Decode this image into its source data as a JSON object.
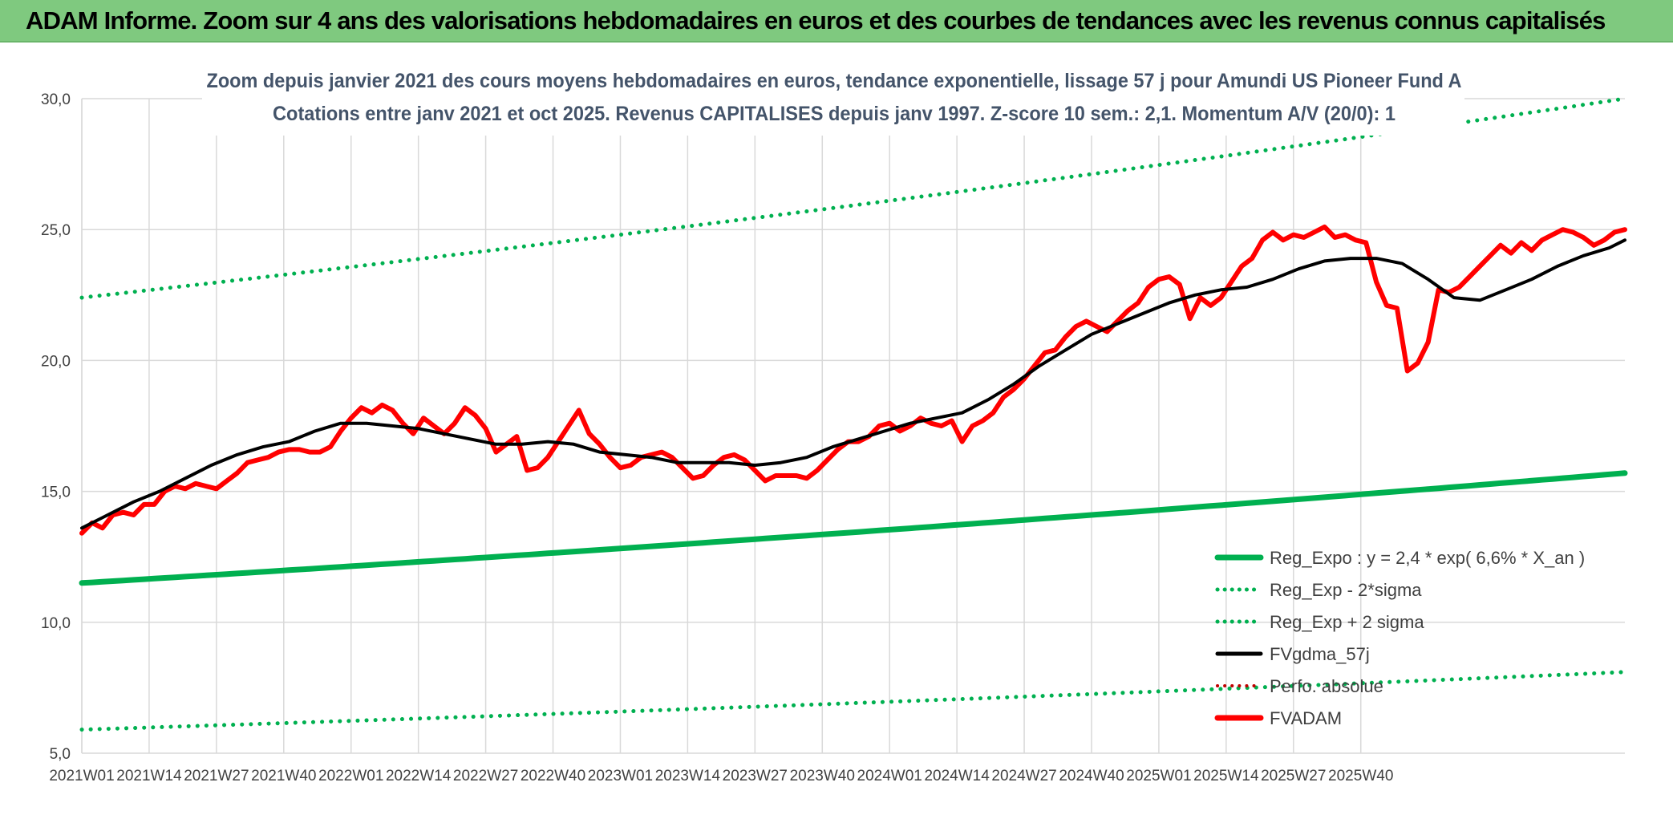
{
  "header": {
    "title": "ADAM Informe. Zoom sur 4 ans des valorisations hebdomadaires en euros et des courbes de tendances avec les revenus connus capitalisés"
  },
  "colors": {
    "banner": "#7fc97f",
    "reg_expo": "#00b050",
    "sigma": "#00b050",
    "fvgdma": "#000000",
    "perfo": "#c00000",
    "fvadam": "#ff0000",
    "grid": "#d9d9d9"
  },
  "chart_data": {
    "type": "line",
    "title_line1": "Zoom depuis janvier 2021 des cours moyens hebdomadaires en euros, tendance exponentielle, lissage 57 j pour Amundi US Pioneer Fund A",
    "title_line2": "Cotations entre janv 2021 et oct 2025. Revenus CAPITALISES depuis janv 1997. Z-score 10 sem.: 2,1. Momentum A/V (20/0): 1",
    "ylim": [
      5,
      30
    ],
    "y_ticks": [
      "5,0",
      "10,0",
      "15,0",
      "20,0",
      "25,0",
      "30,0"
    ],
    "grid": true,
    "legend_position": "bottom-right",
    "x_tick_labels": [
      "2021W01",
      "2021W14",
      "2021W27",
      "2021W40",
      "2022W01",
      "2022W14",
      "2022W27",
      "2022W40",
      "2023W01",
      "2023W14",
      "2023W27",
      "2023W40",
      "2024W01",
      "2024W14",
      "2024W27",
      "2024W40",
      "2025W01",
      "2025W14",
      "2025W27",
      "2025W40"
    ],
    "series": [
      {
        "name": "Reg_Expo : y = 2,4 * exp( 6,6% *  X_an )",
        "style": "solid-thick",
        "color": "#00b050",
        "start": 11.5,
        "end": 15.7
      },
      {
        "name": "Reg_Exp - 2*sigma",
        "style": "dotted",
        "color": "#00b050",
        "start": 5.9,
        "end": 8.1
      },
      {
        "name": "Reg_Exp + 2 sigma",
        "style": "dotted",
        "color": "#00b050",
        "start": 22.4,
        "end": 30.0,
        "clipped_at": 30.0
      },
      {
        "name": "FVgdma_57j",
        "style": "solid",
        "color": "#000000",
        "anchors": [
          [
            0,
            13.6
          ],
          [
            5,
            14.1
          ],
          [
            10,
            14.6
          ],
          [
            15,
            15.0
          ],
          [
            20,
            15.5
          ],
          [
            25,
            16.0
          ],
          [
            30,
            16.4
          ],
          [
            35,
            16.7
          ],
          [
            40,
            16.9
          ],
          [
            45,
            17.3
          ],
          [
            50,
            17.6
          ],
          [
            55,
            17.6
          ],
          [
            60,
            17.5
          ],
          [
            65,
            17.4
          ],
          [
            70,
            17.2
          ],
          [
            75,
            17.0
          ],
          [
            80,
            16.8
          ],
          [
            85,
            16.8
          ],
          [
            90,
            16.9
          ],
          [
            95,
            16.8
          ],
          [
            100,
            16.5
          ],
          [
            105,
            16.4
          ],
          [
            110,
            16.3
          ],
          [
            115,
            16.1
          ],
          [
            120,
            16.1
          ],
          [
            125,
            16.1
          ],
          [
            130,
            16.0
          ],
          [
            135,
            16.1
          ],
          [
            140,
            16.3
          ],
          [
            145,
            16.7
          ],
          [
            150,
            17.0
          ],
          [
            155,
            17.3
          ],
          [
            160,
            17.6
          ],
          [
            165,
            17.8
          ],
          [
            170,
            18.0
          ],
          [
            175,
            18.5
          ],
          [
            180,
            19.1
          ],
          [
            185,
            19.8
          ],
          [
            190,
            20.4
          ],
          [
            195,
            21.0
          ],
          [
            200,
            21.4
          ],
          [
            205,
            21.8
          ],
          [
            210,
            22.2
          ],
          [
            215,
            22.5
          ],
          [
            220,
            22.7
          ],
          [
            225,
            22.8
          ],
          [
            230,
            23.1
          ],
          [
            235,
            23.5
          ],
          [
            240,
            23.8
          ],
          [
            245,
            23.9
          ],
          [
            250,
            23.9
          ],
          [
            255,
            23.7
          ],
          [
            260,
            23.1
          ],
          [
            265,
            22.4
          ],
          [
            270,
            22.3
          ],
          [
            275,
            22.7
          ],
          [
            280,
            23.1
          ],
          [
            285,
            23.6
          ],
          [
            290,
            24.0
          ],
          [
            295,
            24.3
          ],
          [
            298,
            24.6
          ]
        ]
      },
      {
        "name": "Perfo. absolue",
        "style": "dotted",
        "color": "#c00000"
      },
      {
        "name": "FVADAM",
        "style": "solid-thick",
        "color": "#ff0000",
        "anchors": [
          [
            0,
            13.4
          ],
          [
            2,
            13.8
          ],
          [
            4,
            13.6
          ],
          [
            6,
            14.1
          ],
          [
            8,
            14.2
          ],
          [
            10,
            14.1
          ],
          [
            12,
            14.5
          ],
          [
            14,
            14.5
          ],
          [
            16,
            15.0
          ],
          [
            18,
            15.2
          ],
          [
            20,
            15.1
          ],
          [
            22,
            15.3
          ],
          [
            24,
            15.2
          ],
          [
            26,
            15.1
          ],
          [
            28,
            15.4
          ],
          [
            30,
            15.7
          ],
          [
            32,
            16.1
          ],
          [
            34,
            16.2
          ],
          [
            36,
            16.3
          ],
          [
            38,
            16.5
          ],
          [
            40,
            16.6
          ],
          [
            42,
            16.6
          ],
          [
            44,
            16.5
          ],
          [
            46,
            16.5
          ],
          [
            48,
            16.7
          ],
          [
            50,
            17.3
          ],
          [
            52,
            17.8
          ],
          [
            54,
            18.2
          ],
          [
            56,
            18.0
          ],
          [
            58,
            18.3
          ],
          [
            60,
            18.1
          ],
          [
            62,
            17.6
          ],
          [
            64,
            17.2
          ],
          [
            66,
            17.8
          ],
          [
            68,
            17.5
          ],
          [
            70,
            17.2
          ],
          [
            72,
            17.6
          ],
          [
            74,
            18.2
          ],
          [
            76,
            17.9
          ],
          [
            78,
            17.4
          ],
          [
            80,
            16.5
          ],
          [
            82,
            16.8
          ],
          [
            84,
            17.1
          ],
          [
            86,
            15.8
          ],
          [
            88,
            15.9
          ],
          [
            90,
            16.3
          ],
          [
            92,
            16.9
          ],
          [
            94,
            17.5
          ],
          [
            96,
            18.1
          ],
          [
            98,
            17.2
          ],
          [
            100,
            16.8
          ],
          [
            102,
            16.3
          ],
          [
            104,
            15.9
          ],
          [
            106,
            16.0
          ],
          [
            108,
            16.3
          ],
          [
            110,
            16.4
          ],
          [
            112,
            16.5
          ],
          [
            114,
            16.3
          ],
          [
            116,
            15.9
          ],
          [
            118,
            15.5
          ],
          [
            120,
            15.6
          ],
          [
            122,
            16.0
          ],
          [
            124,
            16.3
          ],
          [
            126,
            16.4
          ],
          [
            128,
            16.2
          ],
          [
            130,
            15.8
          ],
          [
            132,
            15.4
          ],
          [
            134,
            15.6
          ],
          [
            136,
            15.6
          ],
          [
            138,
            15.6
          ],
          [
            140,
            15.5
          ],
          [
            142,
            15.8
          ],
          [
            144,
            16.2
          ],
          [
            146,
            16.6
          ],
          [
            148,
            16.9
          ],
          [
            150,
            16.9
          ],
          [
            152,
            17.1
          ],
          [
            154,
            17.5
          ],
          [
            156,
            17.6
          ],
          [
            158,
            17.3
          ],
          [
            160,
            17.5
          ],
          [
            162,
            17.8
          ],
          [
            164,
            17.6
          ],
          [
            166,
            17.5
          ],
          [
            168,
            17.7
          ],
          [
            170,
            16.9
          ],
          [
            172,
            17.5
          ],
          [
            174,
            17.7
          ],
          [
            176,
            18.0
          ],
          [
            178,
            18.6
          ],
          [
            180,
            18.9
          ],
          [
            182,
            19.3
          ],
          [
            184,
            19.8
          ],
          [
            186,
            20.3
          ],
          [
            188,
            20.4
          ],
          [
            190,
            20.9
          ],
          [
            192,
            21.3
          ],
          [
            194,
            21.5
          ],
          [
            196,
            21.3
          ],
          [
            198,
            21.1
          ],
          [
            200,
            21.5
          ],
          [
            202,
            21.9
          ],
          [
            204,
            22.2
          ],
          [
            206,
            22.8
          ],
          [
            208,
            23.1
          ],
          [
            210,
            23.2
          ],
          [
            212,
            22.9
          ],
          [
            214,
            21.6
          ],
          [
            216,
            22.4
          ],
          [
            218,
            22.1
          ],
          [
            220,
            22.4
          ],
          [
            222,
            23.0
          ],
          [
            224,
            23.6
          ],
          [
            226,
            23.9
          ],
          [
            228,
            24.6
          ],
          [
            230,
            24.9
          ],
          [
            232,
            24.6
          ],
          [
            234,
            24.8
          ],
          [
            236,
            24.7
          ],
          [
            238,
            24.9
          ],
          [
            240,
            25.1
          ],
          [
            242,
            24.7
          ],
          [
            244,
            24.8
          ],
          [
            246,
            24.6
          ],
          [
            248,
            24.5
          ],
          [
            250,
            23.0
          ],
          [
            252,
            22.1
          ],
          [
            254,
            22.0
          ],
          [
            256,
            19.6
          ],
          [
            258,
            19.9
          ],
          [
            260,
            20.7
          ],
          [
            262,
            22.7
          ],
          [
            264,
            22.6
          ],
          [
            266,
            22.8
          ],
          [
            268,
            23.2
          ],
          [
            270,
            23.6
          ],
          [
            272,
            24.0
          ],
          [
            274,
            24.4
          ],
          [
            276,
            24.1
          ],
          [
            278,
            24.5
          ],
          [
            280,
            24.2
          ],
          [
            282,
            24.6
          ],
          [
            284,
            24.8
          ],
          [
            286,
            25.0
          ],
          [
            288,
            24.9
          ],
          [
            290,
            24.7
          ],
          [
            292,
            24.4
          ],
          [
            294,
            24.6
          ],
          [
            296,
            24.9
          ],
          [
            298,
            25.0
          ]
        ]
      }
    ]
  }
}
